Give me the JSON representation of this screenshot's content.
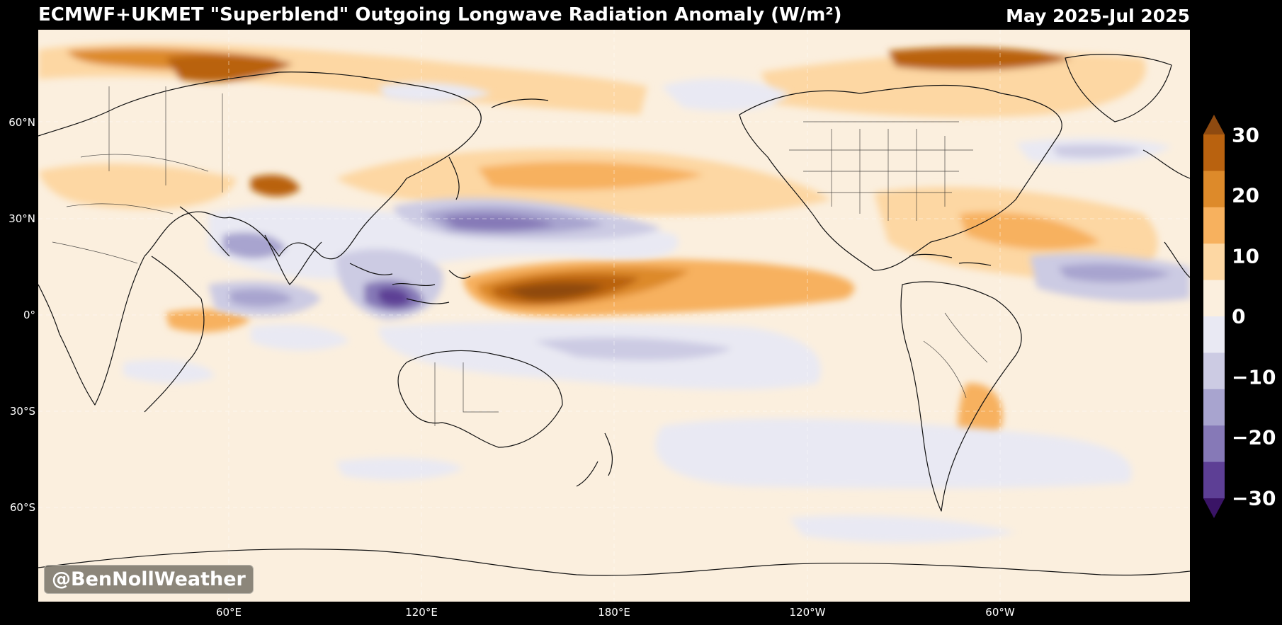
{
  "header": {
    "title": "ECMWF+UKMET \"Superblend\" Outgoing Longwave Radiation Anomaly (W/m²)",
    "period": "May 2025-Jul 2025"
  },
  "map": {
    "projection": "equirectangular, Pacific-centered",
    "lat_labels": [
      "60°N",
      "30°N",
      "0°",
      "30°S",
      "60°S"
    ],
    "lon_labels": [
      "60°E",
      "120°E",
      "180°E",
      "120°W",
      "60°W"
    ],
    "watermark": "@BenNollWeather"
  },
  "colorbar": {
    "ticks": [
      "30",
      "20",
      "10",
      "0",
      "−10",
      "−20",
      "−30"
    ],
    "colors_top_to_bottom": [
      "#8e4a10",
      "#b9620f",
      "#dd8a2a",
      "#f7b15e",
      "#fdd7a3",
      "#fbefde",
      "#e9e9f3",
      "#cccbe3",
      "#a8a4cf",
      "#8679b7",
      "#5d3f95",
      "#3a1466"
    ]
  }
}
